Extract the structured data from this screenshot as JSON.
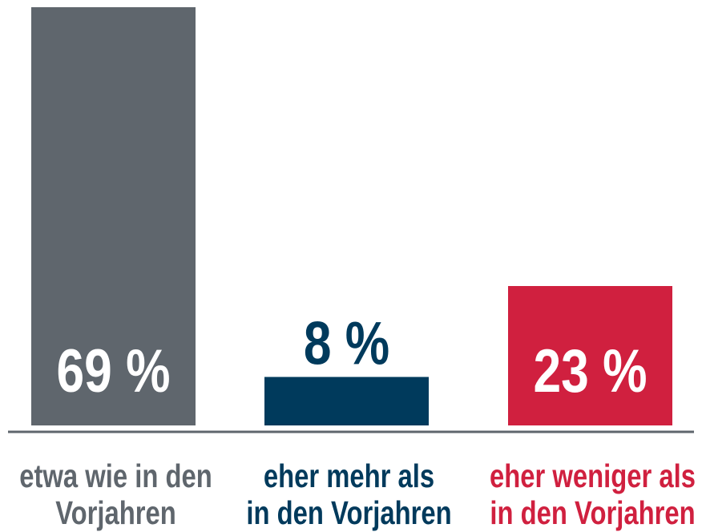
{
  "chart_data": {
    "type": "bar",
    "categories": [
      [
        "etwa wie in den",
        "Vorjahren"
      ],
      [
        "eher mehr als",
        "in den Vorjahren"
      ],
      [
        "eher weniger als",
        "in den Vorjahren"
      ]
    ],
    "values": [
      69,
      8,
      23
    ],
    "value_labels": [
      "69 %",
      "8 %",
      "23 %"
    ],
    "colors": [
      "#5f666d",
      "#003a5c",
      "#d0203f"
    ]
  }
}
